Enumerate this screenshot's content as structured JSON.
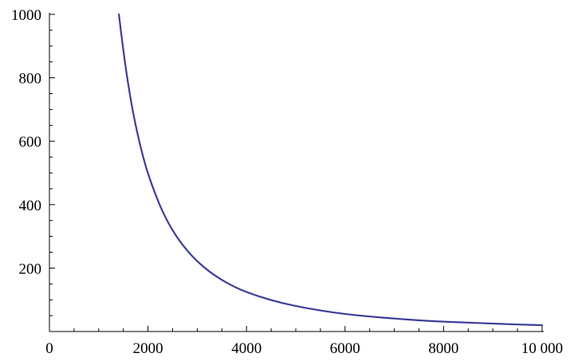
{
  "chart_data": {
    "type": "line",
    "title": "",
    "xlabel": "",
    "ylabel": "",
    "xlim": [
      0,
      10000
    ],
    "ylim": [
      0,
      1000
    ],
    "grid": false,
    "x_major_ticks": [
      0,
      2000,
      4000,
      6000,
      8000,
      10000
    ],
    "x_tick_labels": [
      "0",
      "2000",
      "4000",
      "6000",
      "8000",
      "10 000"
    ],
    "x_minor_step": 500,
    "y_major_ticks": [
      200,
      400,
      600,
      800,
      1000
    ],
    "y_tick_labels": [
      "200",
      "400",
      "600",
      "800",
      "1000"
    ],
    "y_minor_step": 50,
    "series": [
      {
        "color": "#3d3d99",
        "x": [
          1410,
          1500,
          1600,
          1700,
          1800,
          1900,
          2000,
          2200,
          2400,
          2600,
          2800,
          3000,
          3250,
          3500,
          3750,
          4000,
          4500,
          5000,
          5500,
          6000,
          6500,
          7000,
          7500,
          8000,
          8500,
          9000,
          9500,
          10000
        ],
        "y": [
          1000,
          884,
          777,
          688,
          614,
          551,
          497,
          411,
          345,
          294,
          254,
          221,
          188,
          162,
          141,
          124,
          98,
          80,
          66,
          55,
          47,
          41,
          35,
          31,
          28,
          25,
          22,
          20
        ]
      }
    ]
  }
}
